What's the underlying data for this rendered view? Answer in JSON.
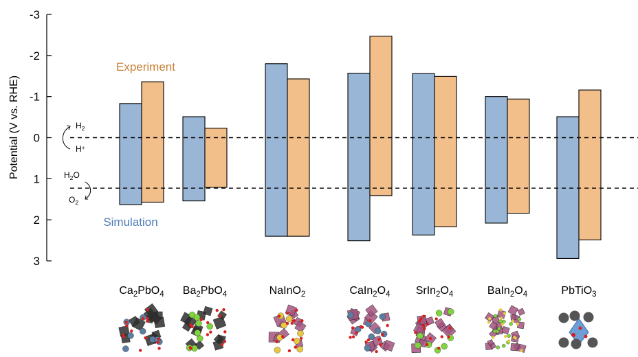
{
  "chart_data": {
    "type": "bar",
    "chart_subtype": "floating-range-bar",
    "ylabel": "Potential (V vs. RHE)",
    "y_axis_inverted": true,
    "ylim": [
      3,
      -3
    ],
    "yticks": [
      "-3",
      "-2",
      "-1",
      "0",
      "1",
      "2",
      "3"
    ],
    "categories": [
      "Ca2PbO4",
      "Ba2PbO4",
      "NaInO2",
      "CaIn2O4",
      "SrIn2O4",
      "BaIn2O4",
      "PbTiO3"
    ],
    "category_labels": [
      {
        "parts": [
          {
            "t": "Ca"
          },
          {
            "t": "2",
            "sub": true
          },
          {
            "t": "PbO"
          },
          {
            "t": "4",
            "sub": true
          }
        ]
      },
      {
        "parts": [
          {
            "t": "Ba"
          },
          {
            "t": "2",
            "sub": true
          },
          {
            "t": "PbO"
          },
          {
            "t": "4",
            "sub": true
          }
        ]
      },
      {
        "parts": [
          {
            "t": "NaInO"
          },
          {
            "t": "2",
            "sub": true
          }
        ]
      },
      {
        "parts": [
          {
            "t": "CaIn"
          },
          {
            "t": "2",
            "sub": true
          },
          {
            "t": "O"
          },
          {
            "t": "4",
            "sub": true
          }
        ]
      },
      {
        "parts": [
          {
            "t": "SrIn"
          },
          {
            "t": "2",
            "sub": true
          },
          {
            "t": "O"
          },
          {
            "t": "4",
            "sub": true
          }
        ]
      },
      {
        "parts": [
          {
            "t": "BaIn"
          },
          {
            "t": "2",
            "sub": true
          },
          {
            "t": "O"
          },
          {
            "t": "4",
            "sub": true
          }
        ]
      },
      {
        "parts": [
          {
            "t": "PbTiO"
          },
          {
            "t": "3",
            "sub": true
          }
        ]
      }
    ],
    "series": [
      {
        "name": "Simulation",
        "color": "#9ab6d6",
        "ranges": [
          [
            -0.83,
            1.63
          ],
          [
            -0.51,
            1.54
          ],
          [
            -1.8,
            2.4
          ],
          [
            -1.57,
            2.51
          ],
          [
            -1.56,
            2.37
          ],
          [
            -1.0,
            2.08
          ],
          [
            -0.51,
            2.94
          ]
        ]
      },
      {
        "name": "Experiment",
        "color": "#f2bf8b",
        "ranges": [
          [
            -1.36,
            1.57
          ],
          [
            -0.23,
            1.21
          ],
          [
            -1.43,
            2.4
          ],
          [
            -2.47,
            1.41
          ],
          [
            -1.49,
            2.17
          ],
          [
            -0.94,
            1.84
          ],
          [
            -1.16,
            2.49
          ]
        ]
      }
    ],
    "reference_lines": [
      {
        "y": 0,
        "style": "dashed"
      },
      {
        "y": 1.23,
        "style": "dashed"
      }
    ],
    "legend_labels": {
      "experiment": {
        "text": "Experiment",
        "color": "#c87f34"
      },
      "simulation": {
        "text": "Simulation",
        "color": "#4e7db4"
      }
    },
    "annotations": {
      "h_couple": {
        "top": [
          {
            "t": "H"
          },
          {
            "t": "2",
            "sub": true
          }
        ],
        "bottom": [
          {
            "t": "H"
          },
          {
            "t": "+",
            "sup": true
          }
        ]
      },
      "o_couple": {
        "top": [
          {
            "t": "H"
          },
          {
            "t": "2",
            "sub": true
          },
          {
            "t": "O"
          }
        ],
        "bottom": [
          {
            "t": "O"
          },
          {
            "t": "2",
            "sub": true
          }
        ]
      }
    },
    "grid": false
  },
  "structure_icons": [
    {
      "name": "ca2pbo4-structure-icon",
      "kind": "pbo-chain",
      "big": "#2e2e2e",
      "small": "#5b7fa3",
      "accent": "#d62020"
    },
    {
      "name": "ba2pbo4-structure-icon",
      "kind": "pbo-chain",
      "big": "#2e2e2e",
      "small": "#7fd63a",
      "accent": "#d62020"
    },
    {
      "name": "nainO2-structure-icon",
      "kind": "layered",
      "big": "#a3557f",
      "small": "#e8c840",
      "accent": "#d62020"
    },
    {
      "name": "cain2o4-structure-icon",
      "kind": "octa-net",
      "big": "#a3557f",
      "small": "#5b7fa3",
      "accent": "#d62020"
    },
    {
      "name": "srin2o4-structure-icon",
      "kind": "octa-net",
      "big": "#a3557f",
      "small": "#7fd63a",
      "accent": "#d62020"
    },
    {
      "name": "bain2o4-structure-icon",
      "kind": "dense",
      "big": "#a3557f",
      "small": "#7fd63a",
      "accent": "#e8c840"
    },
    {
      "name": "pbtio3-structure-icon",
      "kind": "perovskite",
      "big": "#555555",
      "small": "#6d9ed6",
      "accent": "#d62020"
    }
  ]
}
